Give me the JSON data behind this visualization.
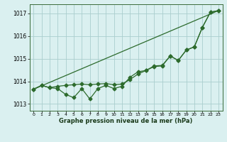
{
  "background_color": "#daf0f0",
  "grid_color": "#aacece",
  "line_color": "#2d6b2d",
  "xlabel": "Graphe pression niveau de la mer (hPa)",
  "xlim": [
    -0.5,
    23.5
  ],
  "ylim": [
    1012.7,
    1017.4
  ],
  "yticks": [
    1013,
    1014,
    1015,
    1016,
    1017
  ],
  "xticks": [
    0,
    1,
    2,
    3,
    4,
    5,
    6,
    7,
    8,
    9,
    10,
    11,
    12,
    13,
    14,
    15,
    16,
    17,
    18,
    19,
    20,
    21,
    22,
    23
  ],
  "line1_x": [
    0,
    1,
    2,
    3,
    4,
    5,
    6,
    7,
    8,
    9,
    10,
    11,
    12,
    13,
    14,
    15,
    16,
    17,
    18,
    19,
    20,
    21,
    22,
    23
  ],
  "line1_y": [
    1013.65,
    1013.82,
    1013.72,
    1013.68,
    1013.42,
    1013.28,
    1013.68,
    1013.22,
    1013.68,
    1013.82,
    1013.68,
    1013.78,
    1014.18,
    1014.42,
    1014.48,
    1014.65,
    1014.68,
    1015.12,
    1014.92,
    1015.38,
    1015.52,
    1016.38,
    1017.05,
    1017.12
  ],
  "line2_x": [
    0,
    1,
    2,
    3,
    4,
    5,
    6,
    7,
    8,
    9,
    10,
    11,
    12,
    13,
    14,
    15,
    16,
    17,
    18,
    19,
    20,
    21,
    22,
    23
  ],
  "line2_y": [
    1013.65,
    1013.82,
    1013.72,
    1013.78,
    1013.82,
    1013.85,
    1013.88,
    1013.85,
    1013.88,
    1013.9,
    1013.85,
    1013.88,
    1014.08,
    1014.32,
    1014.48,
    1014.68,
    1014.7,
    1015.12,
    1014.92,
    1015.38,
    1015.52,
    1016.38,
    1017.05,
    1017.12
  ],
  "line3_x": [
    0,
    23
  ],
  "line3_y": [
    1013.65,
    1017.12
  ]
}
